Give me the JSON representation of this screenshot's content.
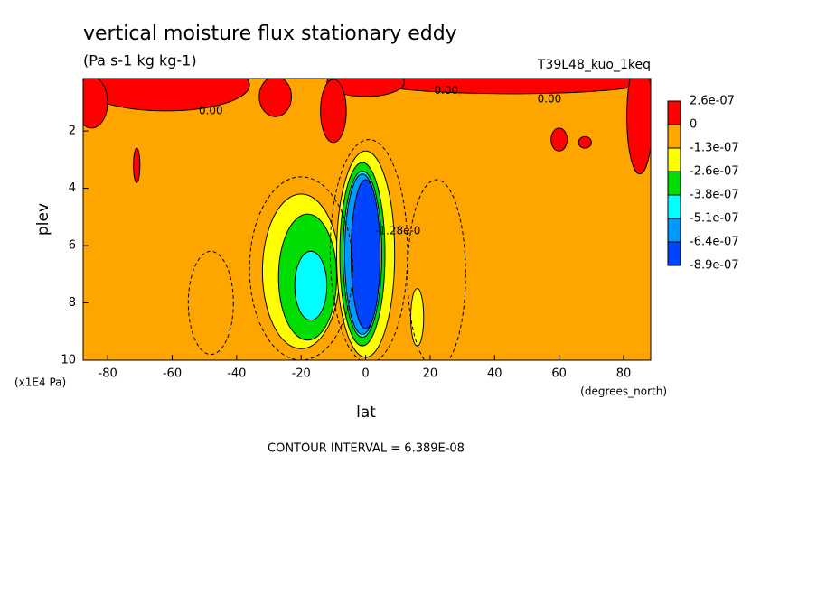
{
  "chart_data": {
    "type": "contour",
    "title": "vertical moisture flux stationary eddy",
    "subtitle": "(Pa s-1 kg kg-1)",
    "dataset": "T39L48_kuo_1keq",
    "x_label": "lat",
    "y_label": "plev",
    "x_units": "(degrees_north)",
    "y_units": "(x1E4 Pa)",
    "footnote": "CONTOUR INTERVAL = 6.389E-08",
    "xlim": [
      -87.6,
      88.4
    ],
    "ylim": [
      10,
      0.17
    ],
    "xticks": [
      -80,
      -60,
      -40,
      -20,
      0,
      20,
      40,
      60,
      80
    ],
    "yticks": [
      2,
      4,
      6,
      8,
      10
    ],
    "background_color": "#ffa500",
    "colorbar": {
      "levels": [
        {
          "value": 2.6e-07,
          "label": "2.6e-07"
        },
        0,
        {
          "value": -1.3e-07,
          "label": "-1.3e-07"
        },
        {
          "value": -2.6e-07,
          "label": "-2.6e-07"
        },
        {
          "value": -3.8e-07,
          "label": "-3.8e-07"
        },
        {
          "value": -5.1e-07,
          "label": "-5.1e-07"
        },
        {
          "value": -6.4e-07,
          "label": "-6.4e-07"
        },
        {
          "value": -8.9e-07,
          "label": "-8.9e-07"
        }
      ],
      "colors": [
        "#ff0000",
        "#ffa500",
        "#ffff00",
        "#00dd00",
        "#00ffff",
        "#0099ff",
        "#0044ff"
      ]
    },
    "regions": [
      {
        "lat": -62,
        "plev": 0.4,
        "rlat": 26,
        "rplev": 0.9,
        "color": "#ff0000"
      },
      {
        "lat": 45,
        "plev": 0.3,
        "rlat": 42,
        "rplev": 0.4,
        "color": "#ff0000"
      },
      {
        "lat": 0,
        "plev": 0.3,
        "rlat": 12,
        "rplev": 0.5,
        "color": "#ff0000"
      },
      {
        "lat": 85,
        "plev": 1.5,
        "rlat": 4,
        "rplev": 2,
        "color": "#ff0000"
      },
      {
        "lat": -85,
        "plev": 1.0,
        "rlat": 5,
        "rplev": 0.9,
        "color": "#ff0000"
      },
      {
        "lat": -28,
        "plev": 0.8,
        "rlat": 5,
        "rplev": 0.7,
        "color": "#ff0000"
      },
      {
        "lat": -10,
        "plev": 1.3,
        "rlat": 4,
        "rplev": 1.1,
        "color": "#ff0000"
      },
      {
        "lat": 60,
        "plev": 2.3,
        "rlat": 2.5,
        "rplev": 0.4,
        "color": "#ff0000"
      },
      {
        "lat": 68,
        "plev": 2.4,
        "rlat": 2,
        "rplev": 0.2,
        "color": "#ff0000"
      },
      {
        "lat": -71,
        "plev": 3.2,
        "rlat": 1,
        "rplev": 0.6,
        "color": "#ff0000"
      },
      {
        "lat": -20,
        "plev": 6.9,
        "rlat": 12,
        "rplev": 2.7,
        "color": "#ffff00"
      },
      {
        "lat": -18,
        "plev": 7.1,
        "rlat": 9,
        "rplev": 2.2,
        "color": "#00dd00"
      },
      {
        "lat": -17,
        "plev": 7.4,
        "rlat": 5,
        "rplev": 1.2,
        "color": "#00ffff"
      },
      {
        "lat": 0,
        "plev": 6.3,
        "rlat": 9,
        "rplev": 3.6,
        "color": "#ffff00"
      },
      {
        "lat": -1,
        "plev": 6.3,
        "rlat": 7,
        "rplev": 3.2,
        "color": "#00dd00"
      },
      {
        "lat": -1,
        "plev": 6.3,
        "rlat": 6,
        "rplev": 2.9,
        "color": "#00ffff"
      },
      {
        "lat": -1,
        "plev": 6.3,
        "rlat": 5.5,
        "rplev": 2.8,
        "color": "#0099ff"
      },
      {
        "lat": 0,
        "plev": 6.3,
        "rlat": 4.5,
        "rplev": 2.6,
        "color": "#0044ff"
      },
      {
        "lat": 16,
        "plev": 8.5,
        "rlat": 2,
        "rplev": 1,
        "color": "#ffff00"
      }
    ],
    "contours": [
      {
        "lat": -20,
        "plev": 6.8,
        "rlat": 16,
        "rplev": 3.2,
        "level": -6.389e-08
      },
      {
        "lat": 1,
        "plev": 6.2,
        "rlat": 12,
        "rplev": 3.9,
        "level": -6.389e-08
      },
      {
        "lat": 22,
        "plev": 7.0,
        "rlat": 9,
        "rplev": 3.3,
        "level": -6.389e-08
      },
      {
        "lat": -48,
        "plev": 8.0,
        "rlat": 7,
        "rplev": 1.8,
        "level": -6.389e-08
      }
    ],
    "contour_labels": [
      {
        "text": "0.00",
        "lat": -48,
        "plev": 1.3
      },
      {
        "text": "0.00",
        "lat": 25,
        "plev": 0.6
      },
      {
        "text": "0.00",
        "lat": 57,
        "plev": 0.9
      },
      {
        "text": "-1.28e-0",
        "lat": 10,
        "plev": 5.5
      }
    ]
  }
}
